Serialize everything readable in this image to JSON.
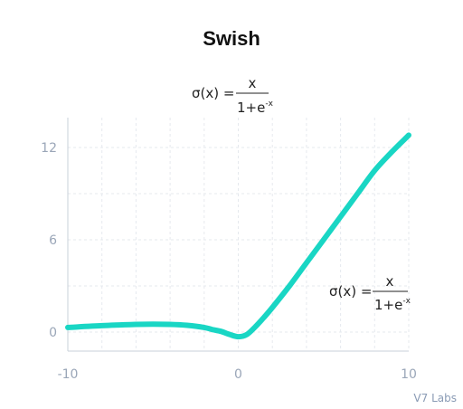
{
  "chart_data": {
    "type": "line",
    "title": "Swish",
    "xlabel": "",
    "ylabel": "",
    "xlim": [
      -10,
      10
    ],
    "ylim": [
      -1,
      13
    ],
    "x_ticks": [
      -10,
      0,
      10
    ],
    "x_tick_labels": [
      "-10",
      "0",
      "10"
    ],
    "y_ticks": [
      0,
      6,
      12
    ],
    "y_tick_labels": [
      "0",
      "6",
      "12"
    ],
    "grid": true,
    "line_color": "#19d6c4",
    "series": [
      {
        "x": [
          -10,
          -8,
          -6,
          -5,
          -4,
          -3,
          -2,
          -1.5,
          -1,
          -0.5,
          0,
          0.5,
          1,
          1.5,
          2,
          3,
          4,
          5,
          6,
          7,
          8,
          9,
          10
        ],
        "values": [
          0.3,
          0.42,
          0.5,
          0.52,
          0.5,
          0.44,
          0.3,
          0.16,
          0.04,
          -0.16,
          -0.3,
          -0.16,
          0.35,
          0.95,
          1.6,
          3.0,
          4.5,
          6.0,
          7.5,
          9.0,
          10.5,
          11.7,
          12.8
        ]
      }
    ],
    "annotations": [
      {
        "lhs": "σ(x) =",
        "numerator": "x",
        "denominator": "1+e",
        "exponent": "-x",
        "position": "above-plot-left"
      },
      {
        "lhs": "σ(x) =",
        "numerator": "x",
        "denominator": "1+e",
        "exponent": "-x",
        "position": "right-middle"
      }
    ]
  },
  "watermark": "V7 Labs"
}
